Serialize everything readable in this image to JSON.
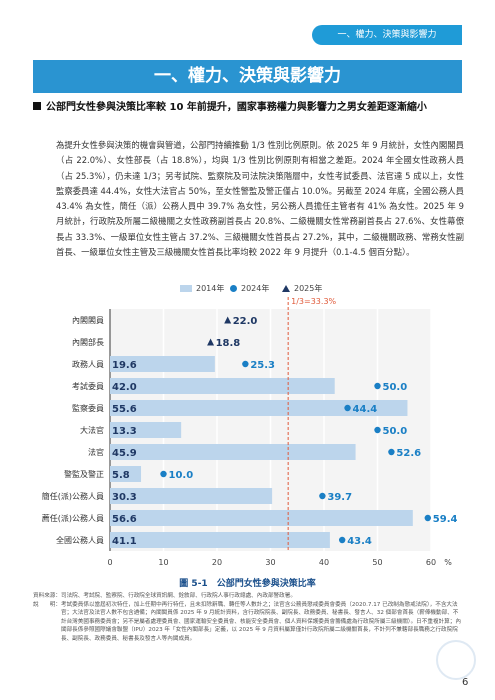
{
  "header": {
    "tab_label": "一、權力、決策與影響力",
    "section_heading": "一、權力、決策與影響力"
  },
  "section": {
    "title": "公部門女性參與決策比率較 10 年前提升，國家事務權力與影響力之男女差距逐漸縮小",
    "paragraph": "為提升女性參與決策的機會與管道，公部門持續推動 1/3 性別比例原則。依 2025 年 9 月統計，女性內閣閣員（占 22.0%）、女性部長（占 18.8%），均與 1/3 性別比例原則有相當之差距。2024 年全國女性政務人員（占 25.3%），仍未達 1/3；另考試院、監察院及司法院決策階層中，女性考試委員、法官達 5 成以上，女性監察委員達 44.4%，女性大法官占 50%，至女性警監及警正僅占 10.0%。另截至 2024 年底，全國公務人員 43.4% 為女性，簡任（派）公務人員中 39.7% 為女性，另公務人員擔任主管者有 41% 為女性。2025 年 9 月統計，行政院及所屬二級機關之女性政務副首長占 20.8%、二級機關女性常務副首長占 27.6%、女性幕僚長占 33.3%、一級單位女性主管占 37.2%、三級機關女性首長占 27.2%，其中，二級機關政務、常務女性副首長、一級單位女性主管及三級機關女性首長比率均較 2022 年 9 月提升（0.1-4.5 個百分點）。"
  },
  "chart_data": {
    "type": "bar",
    "categories": [
      "內閣閣員",
      "內閣部長",
      "政務人員",
      "考試委員",
      "監察委員",
      "大法官",
      "法官",
      "警監及警正",
      "簡任(派)公務人員",
      "薦任(派)公務人員",
      "全國公務人員"
    ],
    "series": [
      {
        "name": "2014年",
        "kind": "bar",
        "values": [
          null,
          null,
          19.6,
          42.0,
          55.6,
          13.3,
          45.9,
          5.8,
          30.3,
          56.6,
          41.1
        ]
      },
      {
        "name": "2024年",
        "kind": "dot",
        "values": [
          null,
          null,
          25.3,
          50.0,
          44.4,
          50.0,
          52.6,
          10.0,
          39.7,
          59.4,
          43.4
        ]
      },
      {
        "name": "2025年",
        "kind": "triangle",
        "values": [
          22.0,
          18.8,
          null,
          null,
          null,
          null,
          null,
          null,
          null,
          null,
          null
        ]
      }
    ],
    "xlim": [
      0,
      60
    ],
    "xticks": [
      "0",
      "10",
      "20",
      "30",
      "40",
      "50",
      "60"
    ],
    "x_unit": "%",
    "reference_line": {
      "label": "1/3=33.3%",
      "value": 33.3
    },
    "bar_labels": [
      "",
      "",
      "19.6",
      "42.0",
      "55.6",
      "13.3",
      "45.9",
      "5.8",
      "30.3",
      "56.6",
      "41.1"
    ],
    "dot_labels": [
      "",
      "",
      "25.3",
      "50.0",
      "44.4",
      "50.0",
      "52.6",
      "10.0",
      "39.7",
      "59.4",
      "43.4"
    ],
    "tri_labels": [
      "22.0",
      "18.8",
      "",
      "",
      "",
      "",
      "",
      "",
      "",
      "",
      ""
    ],
    "grid": true,
    "legend_position": "top",
    "colors": {
      "bar": "#bcd5ec",
      "dot": "#1a7fc5",
      "triangle": "#1f3864",
      "ref_line": "#e05a3a"
    }
  },
  "legend": {
    "bar": "2014年",
    "dot": "2024年",
    "tri": "2025年"
  },
  "figure": {
    "caption": "圖 5-1　公部門女性參與決策比率"
  },
  "notes": {
    "source_label": "資料來源：",
    "source_text": "司法院、考試院、監察院、行政院全球資訊網、銓敘部、行政院人事行政總處、內政部警政署。",
    "remark_label": "說　　明：",
    "remark_text": "考試委員係以當屆初次特任，加上任期中再行特任，且未扣除辭職、轉任等人數計之；法官含公務員懲戒委員會委員（2020.7.17 已改制為懲戒法院），不含大法官；大法官及法官人數不包含遴備；內閣閣員係 2025 年 9 月統計資料，含行政院院長、副院長、政務委員、秘書長、發言人、32 個部會首長（薪俸機動部、不計台灣美國事務委員會；另不是屬者處理委員會、國家運輸安全委員會、核能安全委員會、個人資料保護委員會籌備處為行政院所屬三級機關）。日不重複計算；內閣部長係參照國際議會聯盟（IPU）2023 年「女性內閣部長」定義，以 2025 年 9 月資料屬算僅計行政院所屬二級機關首長，不計列不兼轄部長職務之行政院院長、副院長、政務委員、秘書長及發言人等內閣成員。"
  },
  "page": {
    "number": "6"
  }
}
